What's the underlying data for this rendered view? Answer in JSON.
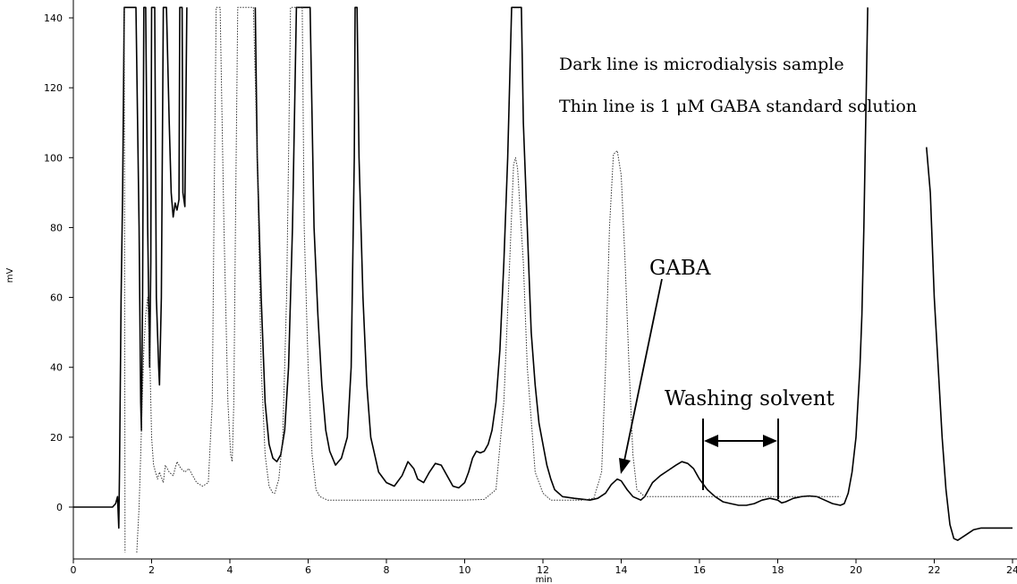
{
  "chart_data": {
    "type": "line",
    "xlabel": "min",
    "ylabel": "mV",
    "xlim": [
      0,
      24
    ],
    "ylim": [
      -13,
      142
    ],
    "x_ticks": [
      0,
      2,
      4,
      6,
      8,
      10,
      12,
      14,
      16,
      18,
      20,
      22,
      24
    ],
    "y_ticks": [
      0,
      20,
      40,
      60,
      80,
      100,
      120,
      140
    ],
    "grid": false,
    "legend": "none",
    "series": [
      {
        "style": "dark-solid",
        "color": "#000000",
        "points": [
          [
            0,
            0
          ],
          [
            1.0,
            0
          ],
          [
            1.08,
            1
          ],
          [
            1.13,
            3
          ],
          [
            1.16,
            -6
          ],
          [
            1.18,
            10
          ],
          [
            1.2,
            35
          ],
          [
            1.22,
            60
          ],
          [
            1.26,
            90
          ],
          [
            1.3,
            143
          ],
          [
            1.5,
            143
          ],
          [
            1.6,
            143
          ],
          [
            1.68,
            80
          ],
          [
            1.72,
            30
          ],
          [
            1.74,
            22
          ],
          [
            1.77,
            60
          ],
          [
            1.8,
            143
          ],
          [
            1.85,
            143
          ],
          [
            1.9,
            80
          ],
          [
            1.95,
            40
          ],
          [
            1.98,
            70
          ],
          [
            2.0,
            143
          ],
          [
            2.08,
            143
          ],
          [
            2.12,
            60
          ],
          [
            2.18,
            40
          ],
          [
            2.2,
            35
          ],
          [
            2.25,
            60
          ],
          [
            2.3,
            143
          ],
          [
            2.38,
            143
          ],
          [
            2.45,
            110
          ],
          [
            2.5,
            90
          ],
          [
            2.55,
            83
          ],
          [
            2.6,
            87
          ],
          [
            2.65,
            85
          ],
          [
            2.7,
            88
          ],
          [
            2.72,
            143
          ],
          [
            2.78,
            143
          ],
          [
            2.8,
            90
          ],
          [
            2.85,
            86
          ],
          [
            2.9,
            143
          ]
        ]
      },
      {
        "style": "dark-solid",
        "color": "#000000",
        "points": [
          [
            4.65,
            143
          ],
          [
            4.7,
            100
          ],
          [
            4.8,
            60
          ],
          [
            4.9,
            30
          ],
          [
            5.0,
            18
          ],
          [
            5.1,
            14
          ],
          [
            5.2,
            13
          ],
          [
            5.3,
            15
          ],
          [
            5.4,
            22
          ],
          [
            5.5,
            40
          ],
          [
            5.6,
            80
          ],
          [
            5.7,
            143
          ],
          [
            5.95,
            143
          ],
          [
            6.05,
            143
          ],
          [
            6.15,
            80
          ],
          [
            6.25,
            55
          ],
          [
            6.35,
            35
          ],
          [
            6.45,
            22
          ],
          [
            6.55,
            16
          ],
          [
            6.7,
            12
          ],
          [
            6.85,
            14
          ],
          [
            7.0,
            20
          ],
          [
            7.1,
            40
          ],
          [
            7.18,
            100
          ],
          [
            7.2,
            143
          ],
          [
            7.25,
            143
          ],
          [
            7.3,
            100
          ],
          [
            7.4,
            60
          ],
          [
            7.5,
            35
          ],
          [
            7.6,
            20
          ],
          [
            7.8,
            10
          ],
          [
            8.0,
            7
          ],
          [
            8.2,
            6
          ],
          [
            8.4,
            9
          ],
          [
            8.55,
            13
          ],
          [
            8.7,
            11
          ],
          [
            8.8,
            8
          ],
          [
            8.95,
            7
          ],
          [
            9.1,
            10
          ],
          [
            9.25,
            12.5
          ],
          [
            9.4,
            12
          ],
          [
            9.55,
            9
          ],
          [
            9.7,
            6
          ],
          [
            9.85,
            5.5
          ],
          [
            10.0,
            7
          ],
          [
            10.1,
            10
          ],
          [
            10.2,
            14
          ],
          [
            10.3,
            16
          ],
          [
            10.4,
            15.5
          ],
          [
            10.5,
            16
          ],
          [
            10.6,
            18
          ],
          [
            10.7,
            22
          ],
          [
            10.8,
            30
          ],
          [
            10.9,
            45
          ],
          [
            11.0,
            70
          ],
          [
            11.1,
            100
          ],
          [
            11.2,
            143
          ],
          [
            11.35,
            143
          ],
          [
            11.45,
            143
          ],
          [
            11.5,
            110
          ],
          [
            11.6,
            80
          ],
          [
            11.7,
            50
          ],
          [
            11.8,
            35
          ],
          [
            11.9,
            24
          ],
          [
            12.0,
            18
          ],
          [
            12.1,
            12
          ],
          [
            12.2,
            8
          ],
          [
            12.3,
            5
          ],
          [
            12.5,
            3
          ],
          [
            12.8,
            2.5
          ],
          [
            13.2,
            2
          ],
          [
            13.4,
            2.5
          ],
          [
            13.6,
            4
          ],
          [
            13.75,
            6.5
          ],
          [
            13.9,
            8
          ],
          [
            14.0,
            7.5
          ],
          [
            14.15,
            5
          ],
          [
            14.3,
            3
          ],
          [
            14.5,
            2
          ],
          [
            14.6,
            3
          ],
          [
            14.8,
            7
          ],
          [
            15.0,
            9
          ],
          [
            15.2,
            10.5
          ],
          [
            15.4,
            12
          ],
          [
            15.55,
            13
          ],
          [
            15.7,
            12.5
          ],
          [
            15.85,
            11
          ],
          [
            16.0,
            8
          ],
          [
            16.2,
            5
          ],
          [
            16.4,
            3
          ],
          [
            16.6,
            1.5
          ],
          [
            16.8,
            1
          ],
          [
            17.0,
            0.5
          ],
          [
            17.2,
            0.5
          ],
          [
            17.4,
            1
          ],
          [
            17.6,
            2
          ],
          [
            17.8,
            2.5
          ],
          [
            18.0,
            2
          ],
          [
            18.1,
            1.2
          ],
          [
            18.2,
            1.5
          ],
          [
            18.4,
            2.5
          ],
          [
            18.6,
            3
          ],
          [
            18.8,
            3.2
          ],
          [
            19.0,
            3
          ],
          [
            19.2,
            2
          ],
          [
            19.4,
            1
          ],
          [
            19.6,
            0.5
          ],
          [
            19.7,
            1
          ],
          [
            19.8,
            4
          ],
          [
            19.9,
            10
          ],
          [
            20.0,
            20
          ],
          [
            20.1,
            40
          ],
          [
            20.15,
            55
          ],
          [
            20.2,
            80
          ],
          [
            20.3,
            143
          ]
        ]
      },
      {
        "style": "dark-solid",
        "color": "#000000",
        "points": [
          [
            21.8,
            103
          ],
          [
            21.9,
            90
          ],
          [
            22.0,
            60
          ],
          [
            22.1,
            40
          ],
          [
            22.2,
            20
          ],
          [
            22.3,
            5
          ],
          [
            22.4,
            -5
          ],
          [
            22.5,
            -9
          ],
          [
            22.6,
            -9.5
          ],
          [
            22.8,
            -8
          ],
          [
            23.0,
            -6.5
          ],
          [
            23.2,
            -6
          ],
          [
            24.0,
            -6
          ]
        ]
      },
      {
        "style": "thin-dotted",
        "color": "#333333",
        "points": [
          [
            1.3,
            143
          ],
          [
            1.32,
            -13
          ]
        ]
      },
      {
        "style": "thin-dotted",
        "color": "#333333",
        "points": [
          [
            1.62,
            -13
          ],
          [
            1.68,
            0
          ],
          [
            1.72,
            15
          ],
          [
            1.76,
            30
          ],
          [
            1.8,
            45
          ],
          [
            1.85,
            55
          ],
          [
            1.9,
            60
          ],
          [
            1.95,
            45
          ],
          [
            2.0,
            20
          ],
          [
            2.05,
            12
          ],
          [
            2.15,
            8
          ],
          [
            2.2,
            10
          ],
          [
            2.3,
            7
          ],
          [
            2.35,
            12
          ],
          [
            2.45,
            10
          ],
          [
            2.55,
            9
          ],
          [
            2.65,
            13
          ],
          [
            2.75,
            11
          ],
          [
            2.85,
            10
          ],
          [
            2.95,
            11
          ],
          [
            3.05,
            9
          ],
          [
            3.15,
            7
          ],
          [
            3.3,
            6
          ],
          [
            3.45,
            7
          ],
          [
            3.55,
            30
          ],
          [
            3.6,
            90
          ],
          [
            3.65,
            143
          ],
          [
            3.75,
            143
          ],
          [
            3.85,
            80
          ],
          [
            3.95,
            30
          ],
          [
            4.02,
            15
          ],
          [
            4.06,
            13
          ],
          [
            4.1,
            30
          ],
          [
            4.15,
            90
          ],
          [
            4.2,
            143
          ],
          [
            4.3,
            143
          ],
          [
            4.35,
            143
          ],
          [
            4.4,
            143
          ],
          [
            4.45,
            143
          ],
          [
            4.5,
            143
          ],
          [
            4.55,
            143
          ],
          [
            4.6,
            143
          ],
          [
            4.7,
            100
          ],
          [
            4.8,
            40
          ],
          [
            4.9,
            15
          ],
          [
            5.0,
            6
          ],
          [
            5.1,
            4
          ],
          [
            5.15,
            4
          ],
          [
            5.25,
            8
          ],
          [
            5.35,
            20
          ],
          [
            5.45,
            60
          ],
          [
            5.5,
            100
          ],
          [
            5.55,
            143
          ],
          [
            5.75,
            143
          ],
          [
            5.85,
            143
          ],
          [
            5.9,
            80
          ],
          [
            6.0,
            40
          ],
          [
            6.1,
            15
          ],
          [
            6.2,
            5
          ],
          [
            6.3,
            3
          ],
          [
            6.5,
            2
          ],
          [
            7.0,
            2
          ],
          [
            8.0,
            2
          ],
          [
            9.0,
            2
          ],
          [
            10.0,
            2
          ],
          [
            10.5,
            2.2
          ],
          [
            10.8,
            5
          ],
          [
            11.0,
            30
          ],
          [
            11.15,
            70
          ],
          [
            11.25,
            98
          ],
          [
            11.3,
            100
          ],
          [
            11.35,
            97
          ],
          [
            11.5,
            70
          ],
          [
            11.6,
            40
          ],
          [
            11.8,
            10
          ],
          [
            12.0,
            4
          ],
          [
            12.2,
            2
          ],
          [
            12.6,
            2
          ],
          [
            13.0,
            2
          ],
          [
            13.3,
            2.5
          ],
          [
            13.5,
            10
          ],
          [
            13.6,
            40
          ],
          [
            13.7,
            80
          ],
          [
            13.8,
            101
          ],
          [
            13.9,
            102
          ],
          [
            14.0,
            95
          ],
          [
            14.1,
            70
          ],
          [
            14.2,
            40
          ],
          [
            14.3,
            15
          ],
          [
            14.4,
            5
          ],
          [
            14.6,
            3
          ],
          [
            15.0,
            3
          ],
          [
            16.0,
            3
          ],
          [
            17.0,
            3
          ],
          [
            18.0,
            3
          ],
          [
            19.0,
            3
          ],
          [
            19.6,
            3
          ]
        ]
      }
    ],
    "annotations": {
      "legend_line_1": "Dark line is microdialysis sample",
      "legend_line_2": "Thin line is 1 μM GABA standard solution",
      "gaba_label": "GABA",
      "washing_label": "Washing solvent"
    }
  }
}
